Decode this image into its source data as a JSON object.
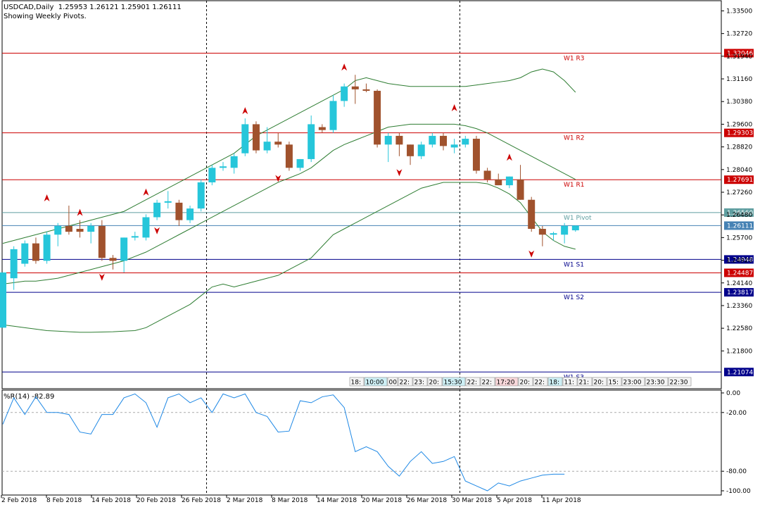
{
  "header": {
    "symbol": "USDCAD,Daily",
    "ohlc": "1.25953 1.26121 1.25901 1.26111",
    "subtitle": "Showing Weekly Pivots."
  },
  "indicator": {
    "label": "%R(14) -82.89"
  },
  "colors": {
    "bull": "#26c6da",
    "bear": "#a0522d",
    "band": "#2e7d32",
    "pivot_red": "#cc0000",
    "pivot_blue": "#00008b",
    "pivot_teal": "#5f9ea0",
    "wpr": "#1e88e5",
    "price_tag": "#4682b4"
  },
  "chart_data": [
    {
      "type": "candlestick",
      "price_ticks": [
        "1.33500",
        "1.32720",
        "1.31940",
        "1.31160",
        "1.30380",
        "1.29600",
        "1.28820",
        "1.28040",
        "1.27260",
        "1.26480",
        "1.25700",
        "1.24920",
        "1.24140",
        "1.23360",
        "1.22580",
        "1.21800"
      ],
      "x_ticks": [
        "2 Feb 2018",
        "8 Feb 2018",
        "14 Feb 2018",
        "20 Feb 2018",
        "26 Feb 2018",
        "2 Mar 2018",
        "8 Mar 2018",
        "14 Mar 2018",
        "20 Mar 2018",
        "26 Mar 2018",
        "30 Mar 2018",
        "5 Apr 2018",
        "11 Apr 2018"
      ],
      "candles": [
        [
          1.226,
          1.245,
          1.226,
          1.245
        ],
        [
          1.243,
          1.254,
          1.239,
          1.253
        ],
        [
          1.248,
          1.256,
          1.247,
          1.255
        ],
        [
          1.255,
          1.257,
          1.248,
          1.249
        ],
        [
          1.249,
          1.259,
          1.248,
          1.258
        ],
        [
          1.258,
          1.262,
          1.254,
          1.261
        ],
        [
          1.261,
          1.268,
          1.258,
          1.259
        ],
        [
          1.26,
          1.263,
          1.257,
          1.259
        ],
        [
          1.259,
          1.262,
          1.255,
          1.261
        ],
        [
          1.261,
          1.263,
          1.249,
          1.25
        ],
        [
          1.25,
          1.251,
          1.246,
          1.249
        ],
        [
          1.249,
          1.257,
          1.245,
          1.257
        ],
        [
          1.257,
          1.259,
          1.256,
          1.2575
        ],
        [
          1.257,
          1.265,
          1.256,
          1.264
        ],
        [
          1.264,
          1.27,
          1.263,
          1.269
        ],
        [
          1.269,
          1.273,
          1.267,
          1.2695
        ],
        [
          1.269,
          1.27,
          1.261,
          1.263
        ],
        [
          1.263,
          1.268,
          1.262,
          1.267
        ],
        [
          1.267,
          1.277,
          1.266,
          1.276
        ],
        [
          1.276,
          1.282,
          1.275,
          1.281
        ],
        [
          1.281,
          1.283,
          1.28,
          1.2815
        ],
        [
          1.281,
          1.286,
          1.279,
          1.285
        ],
        [
          1.286,
          1.298,
          1.285,
          1.296
        ],
        [
          1.296,
          1.297,
          1.286,
          1.287
        ],
        [
          1.287,
          1.295,
          1.286,
          1.29
        ],
        [
          1.29,
          1.293,
          1.288,
          1.289
        ],
        [
          1.289,
          1.29,
          1.28,
          1.281
        ],
        [
          1.281,
          1.284,
          1.28,
          1.284
        ],
        [
          1.284,
          1.299,
          1.283,
          1.296
        ],
        [
          1.295,
          1.296,
          1.293,
          1.294
        ],
        [
          1.294,
          1.306,
          1.293,
          1.304
        ],
        [
          1.304,
          1.31,
          1.302,
          1.309
        ],
        [
          1.309,
          1.313,
          1.303,
          1.308
        ],
        [
          1.308,
          1.31,
          1.307,
          1.3075
        ],
        [
          1.3075,
          1.308,
          1.288,
          1.289
        ],
        [
          1.289,
          1.293,
          1.283,
          1.292
        ],
        [
          1.292,
          1.293,
          1.285,
          1.289
        ],
        [
          1.289,
          1.289,
          1.282,
          1.285
        ],
        [
          1.285,
          1.29,
          1.284,
          1.289
        ],
        [
          1.289,
          1.293,
          1.288,
          1.292
        ],
        [
          1.292,
          1.293,
          1.287,
          1.2885
        ],
        [
          1.288,
          1.291,
          1.286,
          1.289
        ],
        [
          1.289,
          1.292,
          1.288,
          1.291
        ],
        [
          1.291,
          1.292,
          1.279,
          1.28
        ],
        [
          1.28,
          1.281,
          1.276,
          1.277
        ],
        [
          1.277,
          1.279,
          1.275,
          1.275
        ],
        [
          1.275,
          1.278,
          1.274,
          1.278
        ],
        [
          1.277,
          1.282,
          1.27,
          1.27
        ],
        [
          1.27,
          1.271,
          1.259,
          1.26
        ],
        [
          1.26,
          1.261,
          1.254,
          1.258
        ],
        [
          1.258,
          1.259,
          1.256,
          1.2585
        ],
        [
          1.258,
          1.262,
          1.255,
          1.261
        ],
        [
          1.2595,
          1.2612,
          1.259,
          1.2611
        ]
      ],
      "upper_band": [
        1.255,
        1.256,
        1.257,
        1.258,
        1.259,
        1.26,
        1.261,
        1.262,
        1.263,
        1.264,
        1.265,
        1.266,
        1.268,
        1.27,
        1.272,
        1.274,
        1.276,
        1.278,
        1.28,
        1.282,
        1.284,
        1.286,
        1.289,
        1.292,
        1.294,
        1.296,
        1.298,
        1.3,
        1.302,
        1.304,
        1.306,
        1.308,
        1.311,
        1.312,
        1.311,
        1.31,
        1.3095,
        1.309,
        1.309,
        1.309,
        1.309,
        1.309,
        1.309,
        1.3095,
        1.31,
        1.3105,
        1.311,
        1.312,
        1.314,
        1.315,
        1.314,
        1.311,
        1.307
      ],
      "middle_band": [
        1.241,
        1.2415,
        1.242,
        1.242,
        1.2425,
        1.243,
        1.244,
        1.245,
        1.246,
        1.247,
        1.248,
        1.249,
        1.2505,
        1.252,
        1.254,
        1.256,
        1.258,
        1.26,
        1.262,
        1.264,
        1.266,
        1.268,
        1.27,
        1.272,
        1.274,
        1.276,
        1.2775,
        1.279,
        1.281,
        1.284,
        1.287,
        1.289,
        1.2905,
        1.292,
        1.2935,
        1.295,
        1.2955,
        1.296,
        1.296,
        1.296,
        1.296,
        1.296,
        1.2955,
        1.2945,
        1.293,
        1.291,
        1.289,
        1.287,
        1.285,
        1.283,
        1.281,
        1.279,
        1.277
      ],
      "lower_band": [
        1.227,
        1.2265,
        1.226,
        1.2255,
        1.225,
        1.2248,
        1.2246,
        1.2244,
        1.2244,
        1.2245,
        1.2246,
        1.2248,
        1.225,
        1.226,
        1.228,
        1.23,
        1.232,
        1.234,
        1.237,
        1.24,
        1.241,
        1.24,
        1.241,
        1.242,
        1.243,
        1.244,
        1.246,
        1.248,
        1.25,
        1.254,
        1.258,
        1.26,
        1.262,
        1.264,
        1.266,
        1.268,
        1.27,
        1.272,
        1.274,
        1.275,
        1.276,
        1.276,
        1.276,
        1.276,
        1.2755,
        1.274,
        1.272,
        1.269,
        1.264,
        1.259,
        1.256,
        1.254,
        1.253
      ],
      "up_fractals": [
        [
          4,
          1.268
        ],
        [
          7,
          1.263
        ],
        [
          13,
          1.27
        ],
        [
          22,
          1.298
        ],
        [
          31,
          1.313
        ],
        [
          41,
          1.299
        ],
        [
          46,
          1.282
        ]
      ],
      "down_fractals": [
        [
          9,
          1.246
        ],
        [
          14,
          1.262
        ],
        [
          25,
          1.28
        ],
        [
          36,
          1.282
        ],
        [
          48,
          1.254
        ]
      ],
      "vertical_separators": [
        18.5,
        41.5
      ],
      "pivot_levels": [
        {
          "name": "W1 R3",
          "value": 1.32046,
          "label": "1.32046",
          "kind": "red"
        },
        {
          "name": "W1 R2",
          "value": 1.29303,
          "label": "1.29303",
          "kind": "red"
        },
        {
          "name": "W1 R1",
          "value": 1.27691,
          "label": "1.27691",
          "kind": "red"
        },
        {
          "name": "W1 Pivot",
          "value": 1.2656,
          "label": "1.26560",
          "kind": "teal"
        },
        {
          "name": "W1 S1",
          "value": 1.24948,
          "label": "1.24948",
          "kind": "blue"
        },
        {
          "name": "",
          "value": 1.24487,
          "label": "1.24487",
          "kind": "red"
        },
        {
          "name": "W1 S2",
          "value": 1.23817,
          "label": "1.23817",
          "kind": "blue"
        },
        {
          "name": "W1 S3",
          "value": 1.21074,
          "label": "1.21074",
          "kind": "blue"
        }
      ],
      "current_price": {
        "value": 1.26111,
        "label": "1.26111"
      },
      "session_boxes": [
        "18:",
        "10:00",
        "00",
        "22:",
        "23:",
        "20:",
        "15:30",
        "22:",
        "22:",
        "17:20",
        "20:",
        "22:",
        "18:",
        "11:",
        "21:",
        "20:",
        "15:",
        "23:00",
        "23:30",
        "22:30"
      ]
    },
    {
      "type": "line",
      "name": "%R(14)",
      "y_ticks": [
        "0.00",
        "-20.00",
        "-80.00",
        "-100.00"
      ],
      "levels": [
        -20,
        -80
      ],
      "ylim": [
        -100,
        0
      ],
      "values": [
        -32,
        -5,
        -22,
        -4,
        -20,
        -20,
        -22,
        -40,
        -42,
        -22,
        -22,
        -5,
        -1,
        -10,
        -35,
        -5,
        -1,
        -10,
        -5,
        -20,
        -1,
        -5,
        -1,
        -20,
        -24,
        -40,
        -39,
        -8,
        -10,
        -4,
        -2,
        -15,
        -60,
        -55,
        -60,
        -75,
        -85,
        -70,
        -60,
        -72,
        -70,
        -65,
        -90,
        -95,
        -100,
        -92,
        -95,
        -90,
        -87,
        -84,
        -83,
        -83
      ]
    }
  ]
}
